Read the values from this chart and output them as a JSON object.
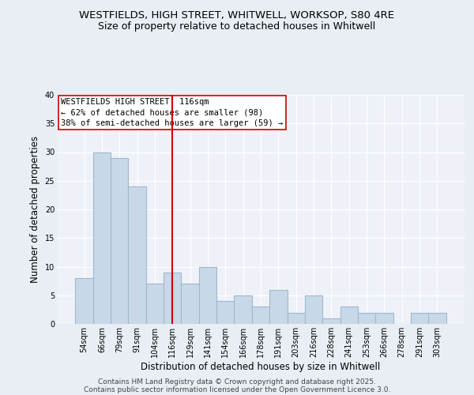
{
  "title1": "WESTFIELDS, HIGH STREET, WHITWELL, WORKSOP, S80 4RE",
  "title2": "Size of property relative to detached houses in Whitwell",
  "xlabel": "Distribution of detached houses by size in Whitwell",
  "ylabel": "Number of detached properties",
  "categories": [
    "54sqm",
    "66sqm",
    "79sqm",
    "91sqm",
    "104sqm",
    "116sqm",
    "129sqm",
    "141sqm",
    "154sqm",
    "166sqm",
    "178sqm",
    "191sqm",
    "203sqm",
    "216sqm",
    "228sqm",
    "241sqm",
    "253sqm",
    "266sqm",
    "278sqm",
    "291sqm",
    "303sqm"
  ],
  "values": [
    8,
    30,
    29,
    24,
    7,
    9,
    7,
    10,
    4,
    5,
    3,
    6,
    2,
    5,
    1,
    3,
    2,
    2,
    0,
    2,
    2
  ],
  "bar_color": "#c8d8e8",
  "bar_edge_color": "#a0b8cc",
  "subject_index": 5,
  "subject_line_color": "#cc0000",
  "annotation_line1": "WESTFIELDS HIGH STREET: 116sqm",
  "annotation_line2": "← 62% of detached houses are smaller (98)",
  "annotation_line3": "38% of semi-detached houses are larger (59) →",
  "annotation_box_color": "#ffffff",
  "annotation_box_edge_color": "#cc0000",
  "ylim": [
    0,
    40
  ],
  "yticks": [
    0,
    5,
    10,
    15,
    20,
    25,
    30,
    35,
    40
  ],
  "footer_line1": "Contains HM Land Registry data © Crown copyright and database right 2025.",
  "footer_line2": "Contains public sector information licensed under the Open Government Licence 3.0.",
  "bg_color": "#e8eef4",
  "plot_bg_color": "#eef2f8",
  "title_fontsize": 9.5,
  "subtitle_fontsize": 9,
  "tick_fontsize": 7,
  "axis_label_fontsize": 8.5,
  "annotation_fontsize": 7.5,
  "footer_fontsize": 6.5
}
